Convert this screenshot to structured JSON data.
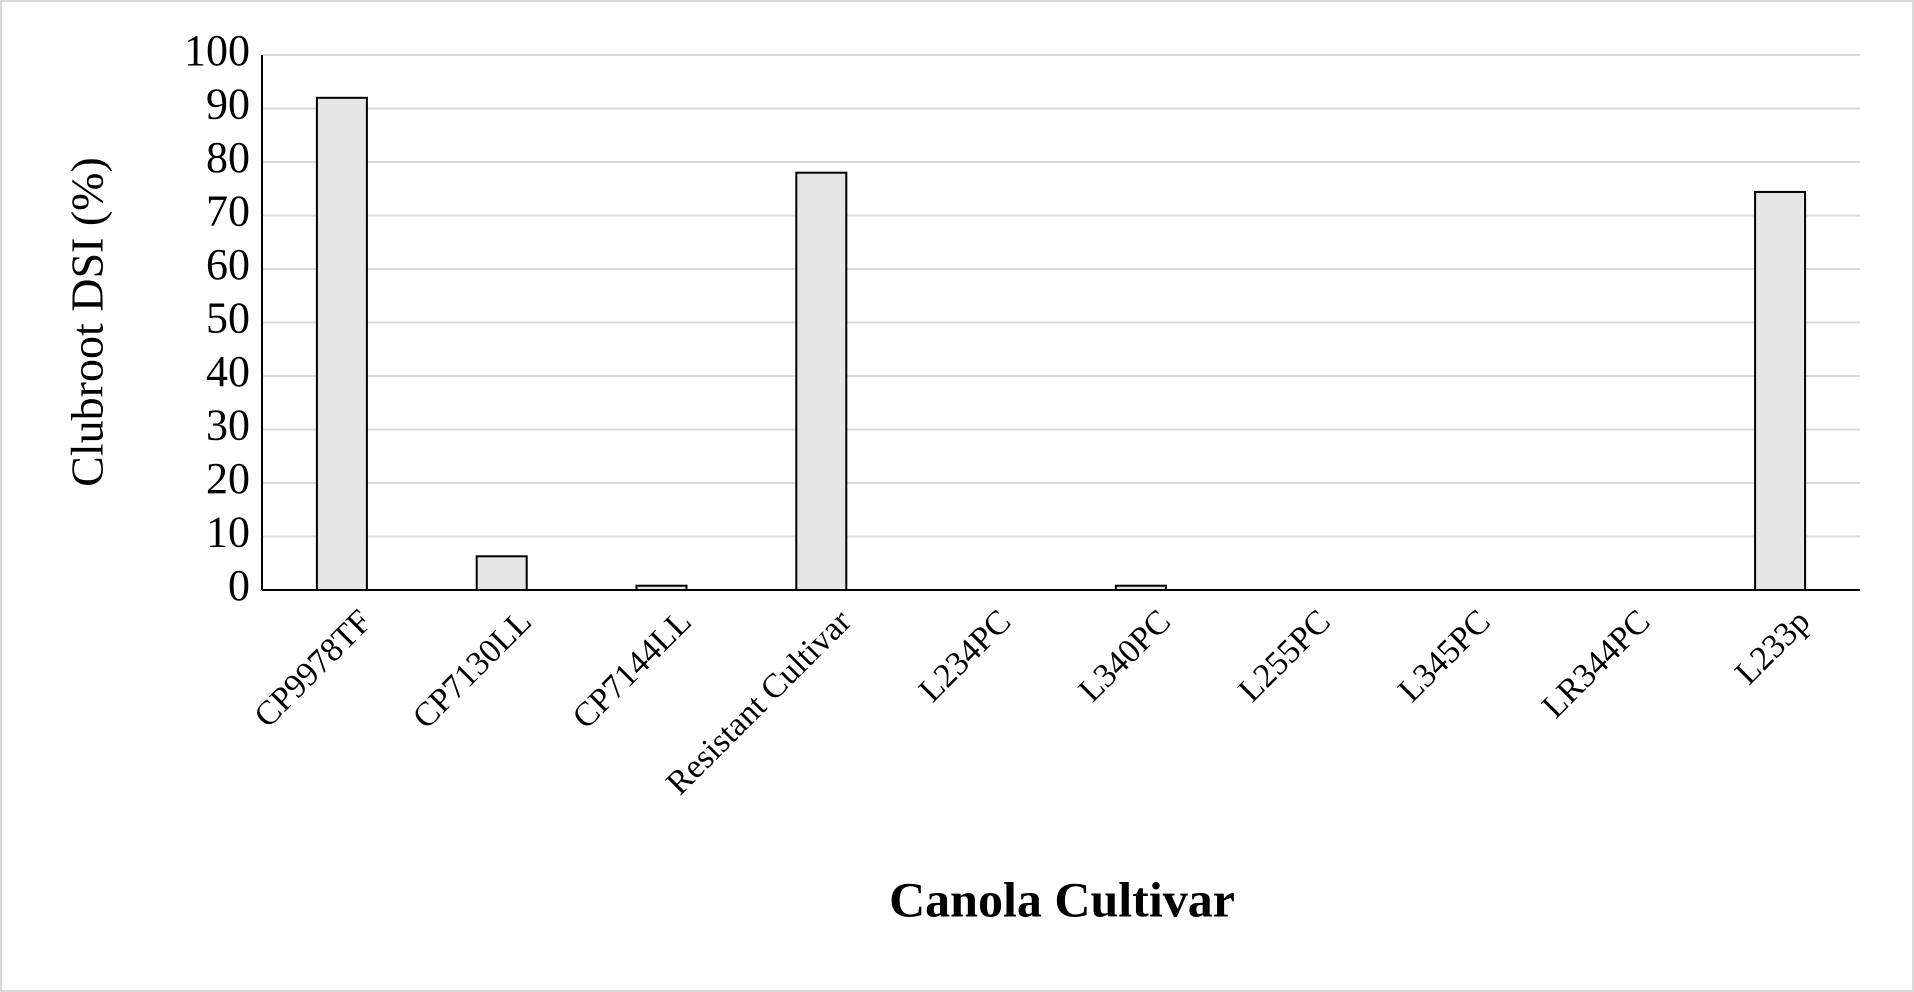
{
  "chart_data": {
    "type": "bar",
    "x_label": "Canola Cultivar",
    "y_label": "Clubroot DSI (%)",
    "categories": [
      "CP9978TF",
      "CP7130LL",
      "CP7144LL",
      "Resistant Cultivar",
      "L234PC",
      "L340PC",
      "L255PC",
      "L345PC",
      "LR344PC",
      "L233p"
    ],
    "values": [
      92,
      6.3,
      0.8,
      78,
      0,
      0.8,
      0,
      0,
      0,
      74.4
    ],
    "color": "#e7e6e6",
    "ylim": [
      0,
      100
    ],
    "yticks": [
      0,
      10,
      20,
      30,
      40,
      50,
      60,
      70,
      80,
      90,
      100
    ],
    "grid": true
  }
}
